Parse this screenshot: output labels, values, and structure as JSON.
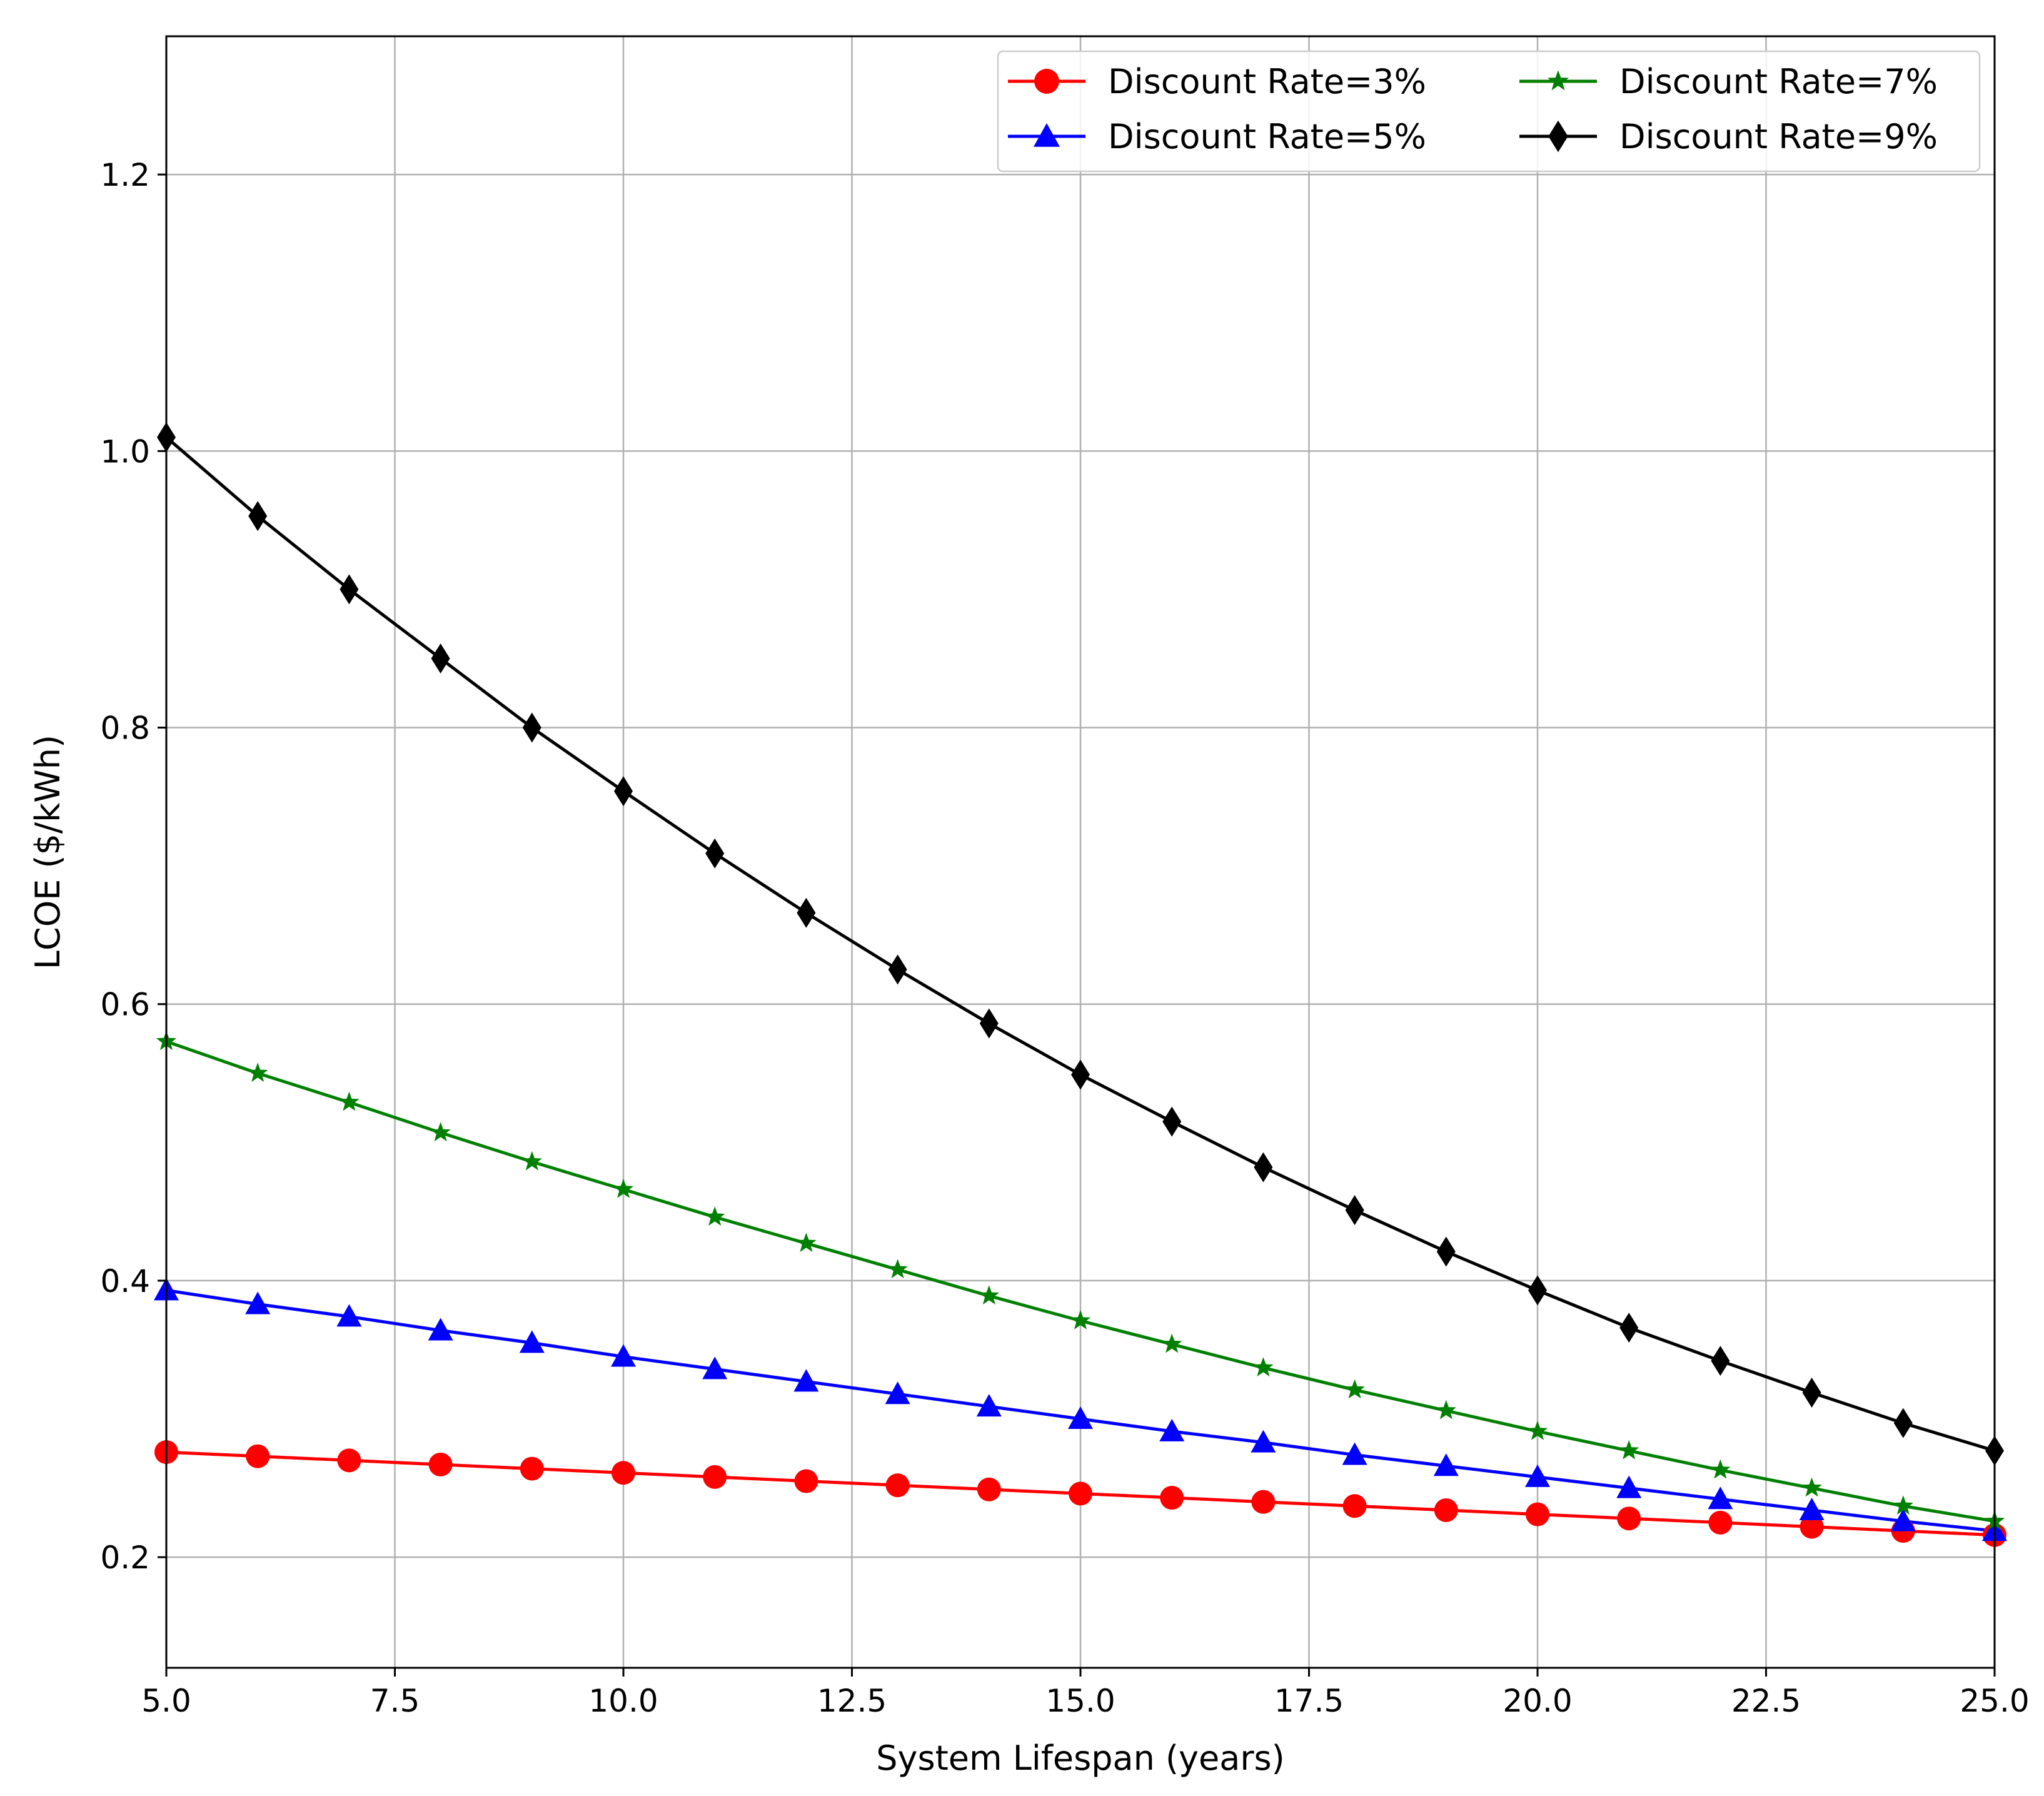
{
  "chart_data": {
    "type": "line",
    "title": "",
    "xlabel": "System Lifespan (years)",
    "ylabel": "LCOE ($/kWh)",
    "xlim": [
      5.0,
      25.0
    ],
    "ylim": [
      0.12,
      1.3
    ],
    "grid": true,
    "legend_position": "top-right",
    "xticks": [
      5.0,
      7.5,
      10.0,
      12.5,
      15.0,
      17.5,
      20.0,
      22.5,
      25.0
    ],
    "xtick_labels": [
      "5.0",
      "7.5",
      "10.0",
      "12.5",
      "15.0",
      "17.5",
      "20.0",
      "22.5",
      "25.0"
    ],
    "yticks": [
      0.2,
      0.4,
      0.6,
      0.8,
      1.0,
      1.2
    ],
    "ytick_labels": [
      "0.2",
      "0.4",
      "0.6",
      "0.8",
      "1.0",
      "1.2"
    ],
    "x": [
      5,
      6,
      7,
      8,
      9,
      10,
      11,
      12,
      13,
      14,
      15,
      16,
      17,
      18,
      19,
      20,
      21,
      22,
      23,
      24,
      25
    ],
    "series": [
      {
        "name": "Discount Rate=3%",
        "color": "#ff0000",
        "marker": "circle",
        "values": [
          0.276,
          0.273,
          0.27,
          0.267,
          0.264,
          0.261,
          0.258,
          0.255,
          0.252,
          0.249,
          0.246,
          0.243,
          0.24,
          0.237,
          0.234,
          0.231,
          0.228,
          0.225,
          0.222,
          0.219,
          0.216
        ]
      },
      {
        "name": "Discount Rate=5%",
        "color": "#0000ff",
        "marker": "triangle",
        "values": [
          0.393,
          0.383,
          0.374,
          0.364,
          0.355,
          0.345,
          0.336,
          0.327,
          0.318,
          0.309,
          0.3,
          0.291,
          0.283,
          0.274,
          0.266,
          0.258,
          0.25,
          0.242,
          0.234,
          0.226,
          0.219
        ]
      },
      {
        "name": "Discount Rate=7%",
        "color": "#008000",
        "marker": "star",
        "values": [
          0.573,
          0.55,
          0.529,
          0.507,
          0.486,
          0.466,
          0.446,
          0.427,
          0.408,
          0.389,
          0.371,
          0.354,
          0.337,
          0.321,
          0.306,
          0.291,
          0.277,
          0.263,
          0.25,
          0.237,
          0.226
        ]
      },
      {
        "name": "Discount Rate=9%",
        "color": "#000000",
        "marker": "diamond",
        "values": [
          1.01,
          0.953,
          0.9,
          0.85,
          0.8,
          0.754,
          0.709,
          0.666,
          0.625,
          0.586,
          0.549,
          0.515,
          0.482,
          0.451,
          0.421,
          0.393,
          0.366,
          0.342,
          0.319,
          0.297,
          0.277
        ]
      }
    ]
  }
}
